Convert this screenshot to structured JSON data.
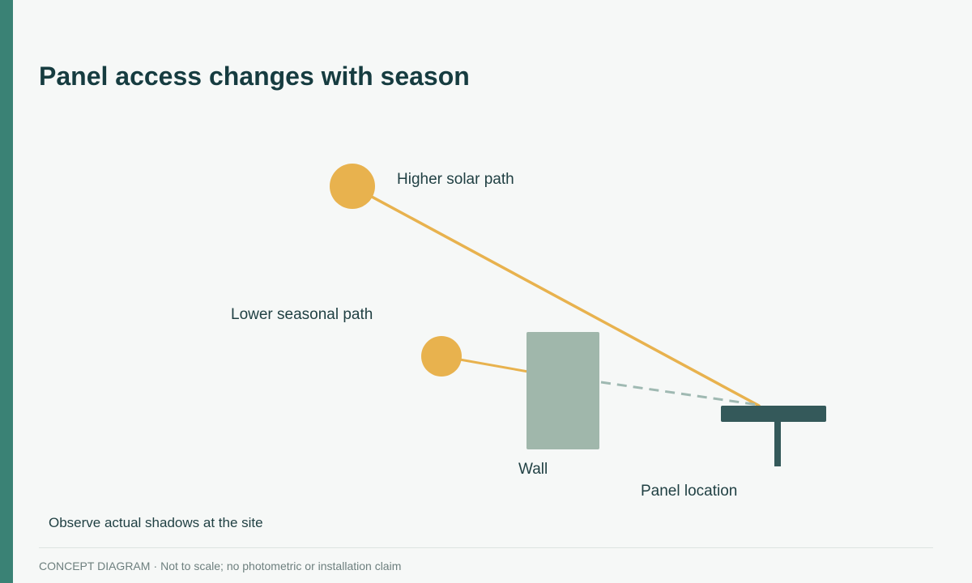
{
  "title": "Panel access changes with season",
  "labels": {
    "higher_path": "Higher solar path",
    "lower_path": "Lower seasonal path",
    "wall": "Wall",
    "panel": "Panel location"
  },
  "note": "Observe actual shadows at the site",
  "footer": {
    "tag": "CONCEPT DIAGRAM",
    "separator": "·",
    "text": "Not to scale; no photometric or installation claim"
  },
  "colors": {
    "accent": "#3a8275",
    "title": "#163c40",
    "sun": "#e8b24e",
    "wall": "#a0b7ab",
    "panel": "#34595a",
    "blocked_ray": "#9fb9b2",
    "background": "#f6f8f7"
  }
}
